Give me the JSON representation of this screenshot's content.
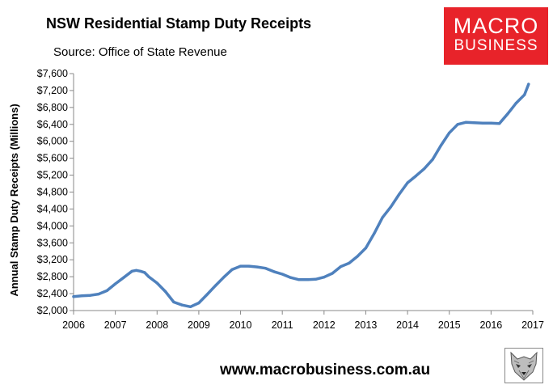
{
  "header": {
    "title": "NSW Residential Stamp Duty Receipts",
    "source": "Source: Office of State Revenue"
  },
  "logo": {
    "line1": "MACRO",
    "line2": "BUSINESS",
    "color": "#e8232a"
  },
  "footer": {
    "url": "www.macrobusiness.com.au",
    "mascot_icon": "wolf-head-icon"
  },
  "chart_data": {
    "type": "line",
    "title": "NSW Residential Stamp Duty Receipts",
    "xlabel": "",
    "ylabel": "Annual Stamp Duty Receipts (Millions)",
    "xlim": [
      2006,
      2017
    ],
    "ylim": [
      2000,
      7600
    ],
    "xticks": [
      2006,
      2007,
      2008,
      2009,
      2010,
      2011,
      2012,
      2013,
      2014,
      2015,
      2016,
      2017
    ],
    "xtick_labels": [
      "2006",
      "2007",
      "2008",
      "2009",
      "2010",
      "2011",
      "2012",
      "2013",
      "2014",
      "2015",
      "2016",
      "2017"
    ],
    "yticks": [
      2000,
      2400,
      2800,
      3200,
      3600,
      4000,
      4400,
      4800,
      5200,
      5600,
      6000,
      6400,
      6800,
      7200,
      7600
    ],
    "ytick_labels": [
      "$2,000",
      "$2,400",
      "$2,800",
      "$3,200",
      "$3,600",
      "$4,000",
      "$4,400",
      "$4,800",
      "$5,200",
      "$5,600",
      "$6,000",
      "$6,400",
      "$6,800",
      "$7,200",
      "$7,600"
    ],
    "grid": false,
    "legend": "none",
    "series": [
      {
        "color": "#4f81bd",
        "x": [
          2006.0,
          2006.2,
          2006.4,
          2006.6,
          2006.8,
          2007.0,
          2007.2,
          2007.4,
          2007.5,
          2007.6,
          2007.7,
          2007.8,
          2008.0,
          2008.2,
          2008.4,
          2008.6,
          2008.8,
          2009.0,
          2009.2,
          2009.4,
          2009.6,
          2009.8,
          2010.0,
          2010.2,
          2010.4,
          2010.6,
          2010.8,
          2011.0,
          2011.2,
          2011.4,
          2011.6,
          2011.8,
          2012.0,
          2012.2,
          2012.4,
          2012.6,
          2012.8,
          2013.0,
          2013.2,
          2013.4,
          2013.6,
          2013.8,
          2014.0,
          2014.2,
          2014.4,
          2014.6,
          2014.8,
          2015.0,
          2015.2,
          2015.4,
          2015.6,
          2015.8,
          2016.0,
          2016.2,
          2016.4,
          2016.6,
          2016.8,
          2016.9
        ],
        "values": [
          2330,
          2350,
          2360,
          2390,
          2470,
          2630,
          2780,
          2930,
          2950,
          2930,
          2900,
          2800,
          2650,
          2450,
          2200,
          2130,
          2090,
          2180,
          2380,
          2590,
          2790,
          2970,
          3050,
          3050,
          3030,
          3000,
          2920,
          2860,
          2780,
          2730,
          2730,
          2740,
          2790,
          2880,
          3040,
          3120,
          3280,
          3480,
          3820,
          4200,
          4450,
          4750,
          5020,
          5180,
          5350,
          5570,
          5900,
          6200,
          6400,
          6450,
          6440,
          6430,
          6430,
          6420,
          6650,
          6900,
          7100,
          7350
        ]
      }
    ]
  }
}
